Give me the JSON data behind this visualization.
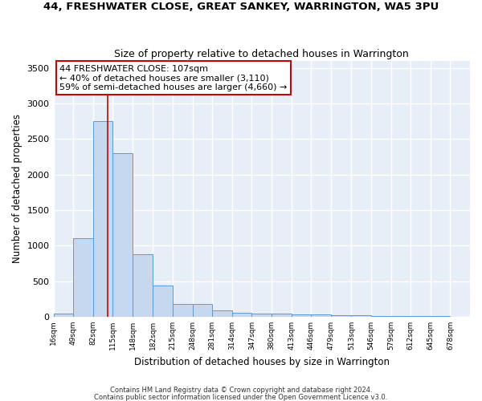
{
  "title": "44, FRESHWATER CLOSE, GREAT SANKEY, WARRINGTON, WA5 3PU",
  "subtitle": "Size of property relative to detached houses in Warrington",
  "xlabel": "Distribution of detached houses by size in Warrington",
  "ylabel": "Number of detached properties",
  "bin_labels": [
    "16sqm",
    "49sqm",
    "82sqm",
    "115sqm",
    "148sqm",
    "182sqm",
    "215sqm",
    "248sqm",
    "281sqm",
    "314sqm",
    "347sqm",
    "380sqm",
    "413sqm",
    "446sqm",
    "479sqm",
    "513sqm",
    "546sqm",
    "579sqm",
    "612sqm",
    "645sqm",
    "678sqm"
  ],
  "bin_left_edges": [
    16,
    49,
    82,
    115,
    148,
    182,
    215,
    248,
    281,
    314,
    347,
    380,
    413,
    446,
    479,
    513,
    546,
    579,
    612,
    645
  ],
  "bin_width": 33,
  "bar_heights": [
    50,
    1100,
    2750,
    2300,
    880,
    440,
    175,
    175,
    90,
    60,
    50,
    40,
    35,
    30,
    20,
    20,
    15,
    15,
    10,
    5
  ],
  "bar_color": "#c5d8f0",
  "bar_edge_color": "#5b9bd5",
  "background_color": "#e8eef7",
  "grid_color": "#ffffff",
  "red_line_x": 107,
  "annotation_title": "44 FRESHWATER CLOSE: 107sqm",
  "annotation_line1": "← 40% of detached houses are smaller (3,110)",
  "annotation_line2": "59% of semi-detached houses are larger (4,660) →",
  "annotation_box_color": "#ffffff",
  "annotation_box_edge": "#cc0000",
  "red_line_color": "#cc0000",
  "ylim_max": 3600,
  "yticks": [
    0,
    500,
    1000,
    1500,
    2000,
    2500,
    3000,
    3500
  ],
  "xlim_min": 16,
  "xlim_max": 711,
  "all_xtick_positions": [
    16,
    49,
    82,
    115,
    148,
    182,
    215,
    248,
    281,
    314,
    347,
    380,
    413,
    446,
    479,
    513,
    546,
    579,
    612,
    645,
    678
  ],
  "footer1": "Contains HM Land Registry data © Crown copyright and database right 2024.",
  "footer2": "Contains public sector information licensed under the Open Government Licence v3.0."
}
